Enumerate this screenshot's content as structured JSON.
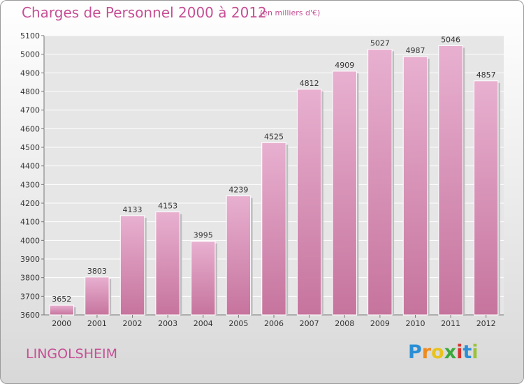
{
  "chart_data": {
    "type": "bar",
    "title": "Charges de Personnel 2000 à 2012",
    "subtitle": "(en milliers d'€)",
    "categories": [
      "2000",
      "2001",
      "2002",
      "2003",
      "2004",
      "2005",
      "2006",
      "2007",
      "2008",
      "2009",
      "2010",
      "2011",
      "2012"
    ],
    "values": [
      3652,
      3803,
      4133,
      4153,
      3995,
      4239,
      4525,
      4812,
      4909,
      5027,
      4987,
      5046,
      4857
    ],
    "ylim": [
      3600,
      5100
    ],
    "yticks": [
      3600,
      3700,
      3800,
      3900,
      4000,
      4100,
      4200,
      4300,
      4400,
      4500,
      4600,
      4700,
      4800,
      4900,
      5000,
      5100
    ],
    "grid": true,
    "bar_color": "#c6749d",
    "bar_top_color": "#e8b0d0",
    "legend": "none"
  },
  "footer": {
    "commune": "LINGOLSHEIM",
    "logo_letters": [
      "P",
      "r",
      "o",
      "x",
      "i",
      "t",
      "i"
    ],
    "logo_colors": [
      "#2a8fd6",
      "#f08a1c",
      "#e8c31c",
      "#3aa83a",
      "#d6352f",
      "#2a8fd6",
      "#9ac23c"
    ]
  },
  "colors": {
    "accent": "#c64f95"
  }
}
